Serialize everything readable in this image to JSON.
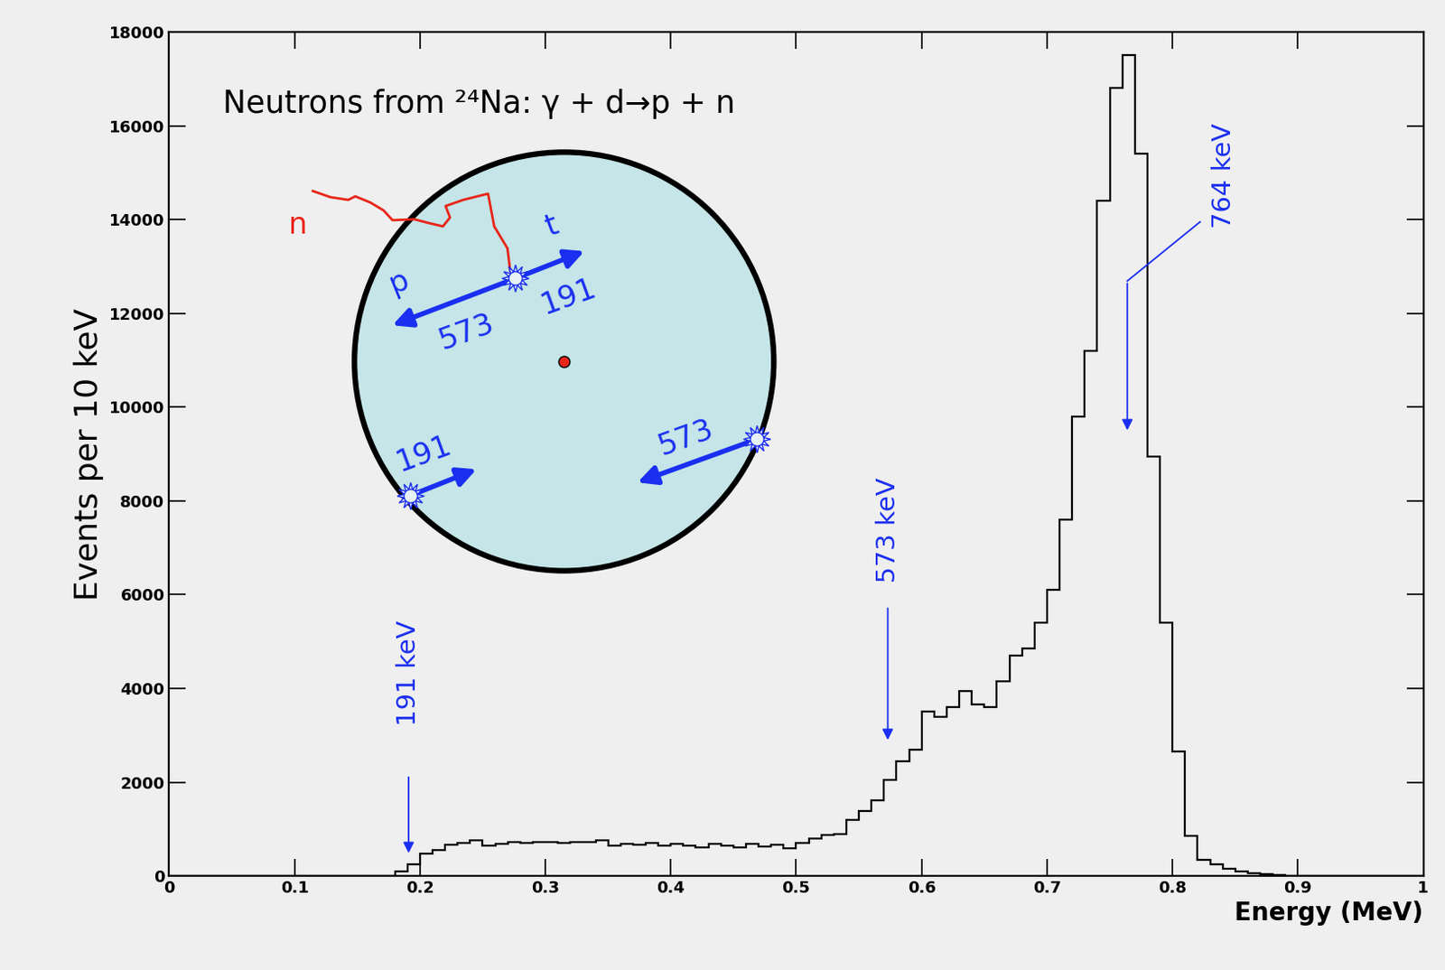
{
  "chart_data": {
    "type": "histogram",
    "title": "Neutrons from ²⁴Na: γ + d→p + n",
    "x_label": "Energy (MeV)",
    "y_label": "Events per 10 keV",
    "bins": [
      0,
      0.01,
      0.02,
      0.03,
      0.04,
      0.05,
      0.06,
      0.07,
      0.08,
      0.09,
      0.1,
      0.11,
      0.12,
      0.13,
      0.14,
      0.15,
      0.16,
      0.17,
      0.18,
      0.19,
      0.2,
      0.21,
      0.22,
      0.23,
      0.24,
      0.25,
      0.26,
      0.27,
      0.28,
      0.29,
      0.3,
      0.31,
      0.32,
      0.33,
      0.34,
      0.35,
      0.36,
      0.37,
      0.38,
      0.39,
      0.4,
      0.41,
      0.42,
      0.43,
      0.44,
      0.45,
      0.46,
      0.47,
      0.48,
      0.49,
      0.5,
      0.51,
      0.52,
      0.53,
      0.54,
      0.55,
      0.56,
      0.57,
      0.58,
      0.59,
      0.6,
      0.61,
      0.62,
      0.63,
      0.64,
      0.65,
      0.66,
      0.67,
      0.68,
      0.69,
      0.7,
      0.71,
      0.72,
      0.73,
      0.74,
      0.75,
      0.76,
      0.77,
      0.78,
      0.79,
      0.8,
      0.81,
      0.82,
      0.83,
      0.84,
      0.85,
      0.86,
      0.87,
      0.88,
      0.89,
      0.9,
      0.91,
      0.92,
      0.93,
      0.94,
      0.95,
      0.96,
      0.97,
      0.98,
      0.99,
      1
    ],
    "values": [
      0,
      0,
      0,
      0,
      0,
      0,
      0,
      0,
      0,
      0,
      0,
      0,
      0,
      0,
      0,
      0,
      0,
      0,
      100,
      250,
      480,
      560,
      660,
      700,
      760,
      640,
      680,
      720,
      700,
      720,
      720,
      710,
      720,
      730,
      760,
      650,
      680,
      660,
      700,
      650,
      680,
      640,
      600,
      680,
      640,
      600,
      680,
      620,
      660,
      580,
      700,
      800,
      880,
      900,
      1200,
      1380,
      1620,
      2050,
      2450,
      2700,
      3500,
      3400,
      3600,
      3950,
      3650,
      3600,
      4150,
      4700,
      4850,
      5400,
      6100,
      7600,
      9800,
      11200,
      14400,
      16800,
      17500,
      15400,
      8950,
      5400,
      2650,
      850,
      350,
      250,
      150,
      100,
      60,
      40,
      20,
      10,
      0,
      0,
      0,
      0,
      0,
      0,
      0,
      0,
      0,
      0
    ],
    "color": "#000000",
    "xlim": [
      0,
      1
    ],
    "xticks": [
      0,
      0.1,
      0.2,
      0.3,
      0.4,
      0.5,
      0.6,
      0.7,
      0.8,
      0.9,
      1
    ],
    "ylim": [
      0,
      18000
    ],
    "yticks": [
      0,
      2000,
      4000,
      6000,
      8000,
      10000,
      12000,
      14000,
      16000,
      18000
    ],
    "grid": false,
    "annotations": [
      {
        "text": "191 keV",
        "x": 0.191
      },
      {
        "text": "573 keV",
        "x": 0.573
      },
      {
        "text": "764 keV",
        "x": 0.764
      }
    ],
    "inset": {
      "particles": {
        "neutron": "n",
        "proton": "p",
        "triton": "t"
      },
      "energies": {
        "proton": 573,
        "triton": 191
      }
    }
  }
}
